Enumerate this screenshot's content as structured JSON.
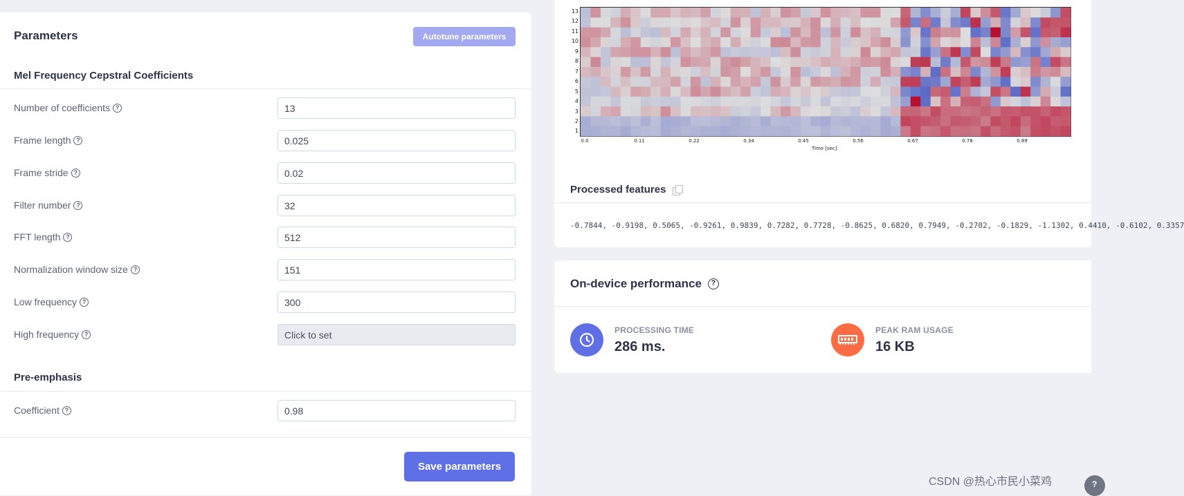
{
  "parameters": {
    "title": "Parameters",
    "autotune_label": "Autotune parameters",
    "mfcc_section": "Mel Frequency Cepstral Coefficients",
    "fields": [
      {
        "label": "Number of coefficients",
        "value": "13"
      },
      {
        "label": "Frame length",
        "value": "0.025"
      },
      {
        "label": "Frame stride",
        "value": "0.02"
      },
      {
        "label": "Filter number",
        "value": "32"
      },
      {
        "label": "FFT length",
        "value": "512"
      },
      {
        "label": "Normalization window size",
        "value": "151"
      },
      {
        "label": "Low frequency",
        "value": "300"
      },
      {
        "label": "High frequency",
        "value": "Click to set"
      }
    ],
    "pre_emphasis_section": "Pre-emphasis",
    "coefficient": {
      "label": "Coefficient",
      "value": "0.98"
    },
    "save_label": "Save parameters",
    "help_glyph": "?"
  },
  "spectrogram": {
    "y_ticks": [
      "13",
      "12",
      "11",
      "10",
      "9",
      "8",
      "7",
      "6",
      "5",
      "4",
      "3",
      "2",
      "1"
    ],
    "x_ticks": [
      "0.0",
      "0.11",
      "0.22",
      "0.34",
      "0.45",
      "0.56",
      "0.67",
      "0.78",
      "0.89"
    ],
    "x_label": "Time [sec]",
    "colormap": [
      "#3b4cc0",
      "#dddddd",
      "#b40426"
    ]
  },
  "processed_features": {
    "title": "Processed features",
    "values": "-0.7844, -0.9198, 0.5065, -0.9261, 0.9839, 0.7282, 0.7728, -0.8625, 0.6820, 0.7949, -0.2702, -0.1829, -1.1302, 0.4410, -0.6102, 0.3357"
  },
  "performance": {
    "title": "On-device performance",
    "processing_label": "PROCESSING TIME",
    "processing_value": "286 ms.",
    "ram_label": "PEAK RAM USAGE",
    "ram_value": "16 KB",
    "processing_color": "#5f6fe6",
    "ram_color": "#ff6b42"
  },
  "watermark": "CSDN @热心市民小菜鸡"
}
